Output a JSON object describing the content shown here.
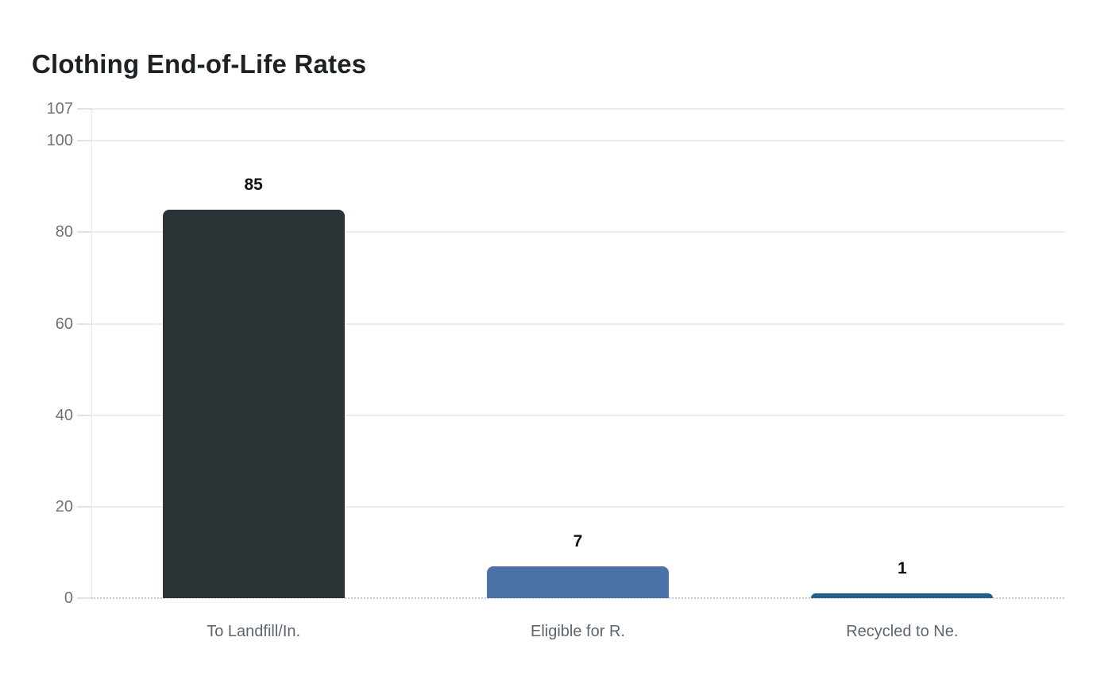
{
  "chart": {
    "title": "Clothing End-of-Life Rates"
  },
  "chart_data": {
    "type": "bar",
    "title": "Clothing End-of-Life Rates",
    "categories": [
      "To Landfill/In.",
      "Eligible for R.",
      "Recycled to Ne."
    ],
    "values": [
      85,
      7,
      1
    ],
    "value_labels": [
      "85",
      "7",
      "1"
    ],
    "bar_colors": [
      "#2b3336",
      "#4c70a8",
      "#1f618d"
    ],
    "xlabel": "",
    "ylabel": "",
    "ylim": [
      0,
      107
    ],
    "yticks": [
      0,
      20,
      40,
      60,
      80,
      100,
      107
    ],
    "grid": "horizontal-gridlines",
    "legend": "none",
    "colors": {
      "title_text": "#1c2126",
      "axis_tick_text": "#6c737b",
      "category_text": "#5d6570",
      "value_label_text": "#111111",
      "gridline": "#ededed",
      "baseline": "#c9c9c9",
      "axis_line": "#d5d5d5",
      "background": "#ffffff"
    }
  }
}
